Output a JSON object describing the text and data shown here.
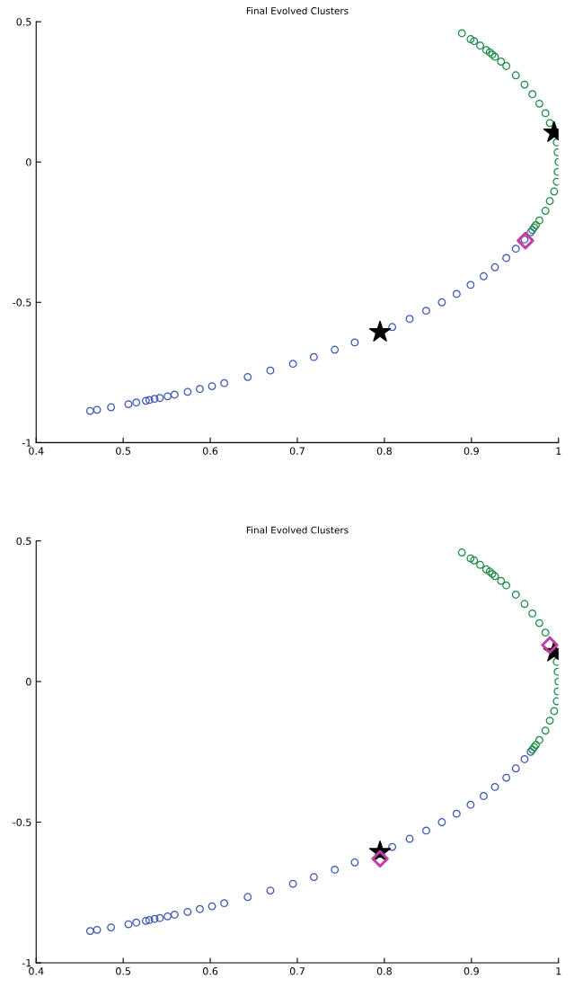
{
  "chart_data": [
    {
      "type": "scatter",
      "title": "Final Evolved Clusters",
      "xlim": [
        0.4,
        1
      ],
      "ylim": [
        -1,
        0.5
      ],
      "xticks": [
        0.4,
        0.5,
        0.6,
        0.7,
        0.8,
        0.9,
        1
      ],
      "yticks": [
        -1,
        -0.5,
        0,
        0.5
      ],
      "grid": false,
      "series": [
        {
          "color": "#3a55b4",
          "marker": "circle",
          "x": [
            0.462,
            0.47,
            0.486,
            0.506,
            0.515,
            0.526,
            0.53,
            0.536,
            0.542,
            0.551,
            0.559,
            0.574,
            0.588,
            0.602,
            0.616,
            0.643,
            0.669,
            0.695,
            0.719,
            0.743,
            0.766,
            0.809,
            0.829,
            0.848,
            0.866,
            0.883,
            0.899,
            0.914,
            0.927,
            0.94,
            0.951,
            0.961,
            0.968
          ],
          "values": [
            -0.887,
            -0.883,
            -0.874,
            -0.863,
            -0.857,
            -0.851,
            -0.848,
            -0.844,
            -0.841,
            -0.835,
            -0.829,
            -0.819,
            -0.809,
            -0.799,
            -0.788,
            -0.766,
            -0.743,
            -0.719,
            -0.695,
            -0.669,
            -0.643,
            -0.588,
            -0.559,
            -0.53,
            -0.5,
            -0.47,
            -0.438,
            -0.407,
            -0.375,
            -0.342,
            -0.309,
            -0.276,
            -0.25
          ]
        },
        {
          "color": "#1a8a45",
          "marker": "circle",
          "x": [
            0.97,
            0.972,
            0.974,
            0.978,
            0.985,
            0.99,
            0.995,
            0.998,
            0.999,
            1,
            0.999,
            0.998,
            0.99,
            0.985,
            0.978,
            0.97,
            0.961,
            0.951,
            0.94,
            0.934,
            0.927,
            0.924,
            0.921,
            0.917,
            0.91,
            0.903,
            0.899,
            0.889
          ],
          "values": [
            -0.242,
            -0.233,
            -0.225,
            -0.208,
            -0.174,
            -0.139,
            -0.105,
            -0.07,
            -0.035,
            0,
            0.035,
            0.07,
            0.139,
            0.174,
            0.208,
            0.242,
            0.276,
            0.309,
            0.342,
            0.358,
            0.375,
            0.383,
            0.391,
            0.399,
            0.415,
            0.431,
            0.438,
            0.459
          ]
        },
        {
          "color": "#c040a8",
          "marker": "diamond",
          "x": [
            0.962
          ],
          "values": [
            -0.28
          ]
        },
        {
          "color": "#000000",
          "marker": "star",
          "x": [
            0.795,
            0.995
          ],
          "values": [
            -0.606,
            0.105
          ]
        }
      ]
    },
    {
      "type": "scatter",
      "title": "Final Evolved Clusters",
      "xlim": [
        0.4,
        1
      ],
      "ylim": [
        -1,
        0.5
      ],
      "xticks": [
        0.4,
        0.5,
        0.6,
        0.7,
        0.8,
        0.9,
        1
      ],
      "yticks": [
        -1,
        -0.5,
        0,
        0.5
      ],
      "grid": false,
      "series": [
        {
          "color": "#3a55b4",
          "marker": "circle",
          "x": [
            0.462,
            0.47,
            0.486,
            0.506,
            0.515,
            0.526,
            0.53,
            0.536,
            0.542,
            0.551,
            0.559,
            0.574,
            0.588,
            0.602,
            0.616,
            0.643,
            0.669,
            0.695,
            0.719,
            0.743,
            0.766,
            0.809,
            0.829,
            0.848,
            0.866,
            0.883,
            0.899,
            0.914,
            0.927,
            0.94,
            0.951,
            0.961,
            0.968
          ],
          "values": [
            -0.887,
            -0.883,
            -0.874,
            -0.863,
            -0.857,
            -0.851,
            -0.848,
            -0.844,
            -0.841,
            -0.835,
            -0.829,
            -0.819,
            -0.809,
            -0.799,
            -0.788,
            -0.766,
            -0.743,
            -0.719,
            -0.695,
            -0.669,
            -0.643,
            -0.588,
            -0.559,
            -0.53,
            -0.5,
            -0.47,
            -0.438,
            -0.407,
            -0.375,
            -0.342,
            -0.309,
            -0.276,
            -0.25
          ]
        },
        {
          "color": "#1a8a45",
          "marker": "circle",
          "x": [
            0.97,
            0.972,
            0.974,
            0.978,
            0.985,
            0.99,
            0.995,
            0.998,
            0.999,
            1,
            0.999,
            0.998,
            0.99,
            0.985,
            0.978,
            0.97,
            0.961,
            0.951,
            0.94,
            0.934,
            0.927,
            0.924,
            0.921,
            0.917,
            0.91,
            0.903,
            0.899,
            0.889
          ],
          "values": [
            -0.242,
            -0.233,
            -0.225,
            -0.208,
            -0.174,
            -0.139,
            -0.105,
            -0.07,
            -0.035,
            0,
            0.035,
            0.07,
            null,
            0.174,
            0.208,
            0.242,
            0.276,
            0.309,
            0.342,
            0.358,
            0.375,
            0.383,
            0.391,
            0.399,
            0.415,
            0.431,
            0.438,
            0.459
          ]
        },
        {
          "color": "#c040a8",
          "marker": "diamond",
          "x": [
            0.795,
            0.99
          ],
          "values": [
            -0.63,
            0.13
          ]
        },
        {
          "color": "#000000",
          "marker": "star",
          "x": [
            0.795,
            0.995
          ],
          "values": [
            -0.606,
            0.105
          ]
        }
      ]
    }
  ]
}
